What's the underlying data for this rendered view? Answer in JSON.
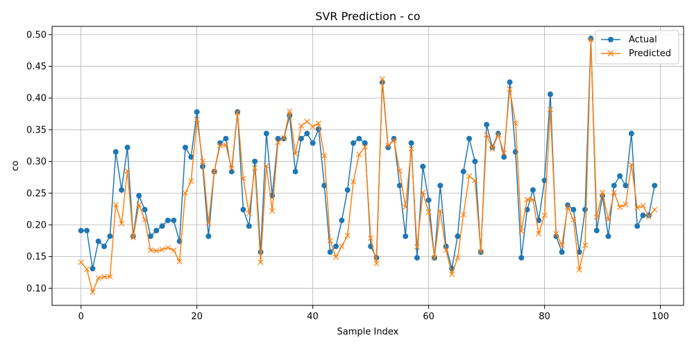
{
  "chart_data": {
    "type": "line",
    "title": "SVR Prediction - co",
    "xlabel": "Sample Index",
    "ylabel": "co",
    "xlim": [
      -5,
      104
    ],
    "ylim": [
      0.073,
      0.513
    ],
    "xticks": [
      0,
      20,
      40,
      60,
      80,
      100
    ],
    "yticks": [
      0.1,
      0.15,
      0.2,
      0.25,
      0.3,
      0.35,
      0.4,
      0.45,
      0.5
    ],
    "grid": true,
    "legend_position": "top-right",
    "series": [
      {
        "name": "Actual",
        "color": "#1f77b4",
        "marker": "circle",
        "values": [
          0.191,
          0.191,
          0.131,
          0.174,
          0.166,
          0.182,
          0.315,
          0.255,
          0.322,
          0.182,
          0.246,
          0.224,
          0.182,
          0.191,
          0.198,
          0.207,
          0.207,
          0.174,
          0.322,
          0.307,
          0.378,
          0.292,
          0.182,
          0.284,
          0.329,
          0.336,
          0.284,
          0.378,
          0.224,
          0.198,
          0.3,
          0.157,
          0.344,
          0.246,
          0.336,
          0.336,
          0.372,
          0.284,
          0.336,
          0.344,
          0.329,
          0.351,
          0.262,
          0.157,
          0.166,
          0.207,
          0.255,
          0.329,
          0.336,
          0.329,
          0.166,
          0.148,
          0.425,
          0.322,
          0.336,
          0.262,
          0.182,
          0.329,
          0.148,
          0.292,
          0.239,
          0.148,
          0.262,
          0.166,
          0.131,
          0.182,
          0.284,
          0.336,
          0.3,
          0.157,
          0.358,
          0.322,
          0.344,
          0.307,
          0.425,
          0.315,
          0.148,
          0.224,
          0.255,
          0.207,
          0.27,
          0.406,
          0.182,
          0.157,
          0.231,
          0.224,
          0.157,
          0.224,
          0.494,
          0.191,
          0.246,
          0.182,
          0.262,
          0.277,
          0.262,
          0.344,
          0.198,
          0.215,
          0.215,
          0.262
        ]
      },
      {
        "name": "Predicted",
        "color": "#ff7f0e",
        "marker": "x",
        "values": [
          0.141,
          0.13,
          0.094,
          0.116,
          0.118,
          0.118,
          0.232,
          0.202,
          0.285,
          0.18,
          0.232,
          0.208,
          0.16,
          0.159,
          0.161,
          0.164,
          0.16,
          0.142,
          0.25,
          0.269,
          0.366,
          0.3,
          0.203,
          0.284,
          0.325,
          0.326,
          0.289,
          0.377,
          0.273,
          0.218,
          0.29,
          0.141,
          0.293,
          0.222,
          0.33,
          0.337,
          0.379,
          0.312,
          0.356,
          0.363,
          0.355,
          0.36,
          0.309,
          0.175,
          0.149,
          0.166,
          0.183,
          0.268,
          0.311,
          0.323,
          0.179,
          0.139,
          0.43,
          0.325,
          0.333,
          0.285,
          0.228,
          0.32,
          0.165,
          0.251,
          0.22,
          0.148,
          0.222,
          0.16,
          0.122,
          0.148,
          0.216,
          0.277,
          0.27,
          0.158,
          0.342,
          0.32,
          0.342,
          0.313,
          0.414,
          0.36,
          0.19,
          0.24,
          0.24,
          0.186,
          0.215,
          0.382,
          0.186,
          0.168,
          0.228,
          0.208,
          0.129,
          0.168,
          0.492,
          0.212,
          0.251,
          0.208,
          0.251,
          0.228,
          0.232,
          0.295,
          0.227,
          0.23,
          0.213,
          0.224
        ]
      }
    ]
  }
}
